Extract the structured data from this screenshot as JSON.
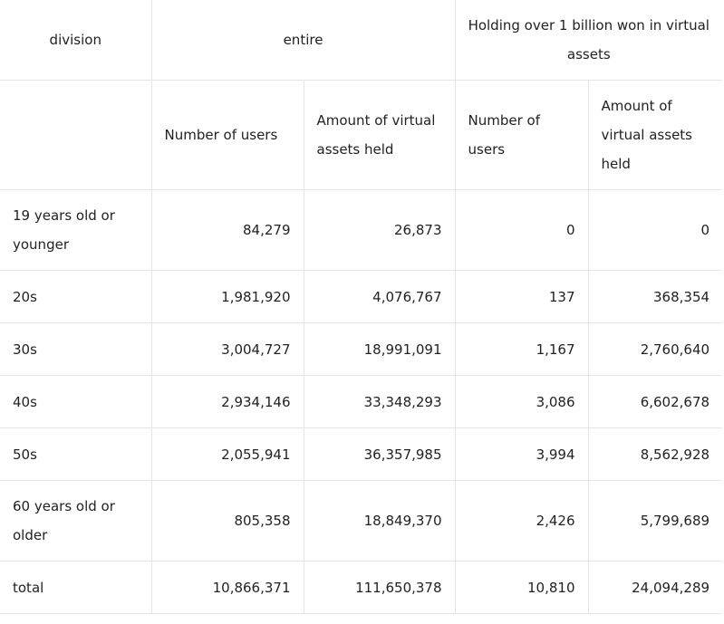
{
  "header": {
    "division": "division",
    "entire": "entire",
    "over_billion": "Holding over 1 billion won in virtual assets",
    "users": "Number of users",
    "amount": "Amount of virtual assets held"
  },
  "rows": [
    {
      "label": "19 years old or younger",
      "users": "84,279",
      "amount": "26,873",
      "users_1b": "0",
      "amount_1b": "0"
    },
    {
      "label": "20s",
      "users": "1,981,920",
      "amount": "4,076,767",
      "users_1b": "137",
      "amount_1b": "368,354"
    },
    {
      "label": "30s",
      "users": "3,004,727",
      "amount": "18,991,091",
      "users_1b": "1,167",
      "amount_1b": "2,760,640"
    },
    {
      "label": "40s",
      "users": "2,934,146",
      "amount": "33,348,293",
      "users_1b": "3,086",
      "amount_1b": "6,602,678"
    },
    {
      "label": "50s",
      "users": "2,055,941",
      "amount": "36,357,985",
      "users_1b": "3,994",
      "amount_1b": "8,562,928"
    },
    {
      "label": "60 years old or older",
      "users": "805,358",
      "amount": "18,849,370",
      "users_1b": "2,426",
      "amount_1b": "5,799,689"
    },
    {
      "label": "total",
      "users": "10,866,371",
      "amount": "111,650,378",
      "users_1b": "10,810",
      "amount_1b": "24,094,289"
    }
  ]
}
